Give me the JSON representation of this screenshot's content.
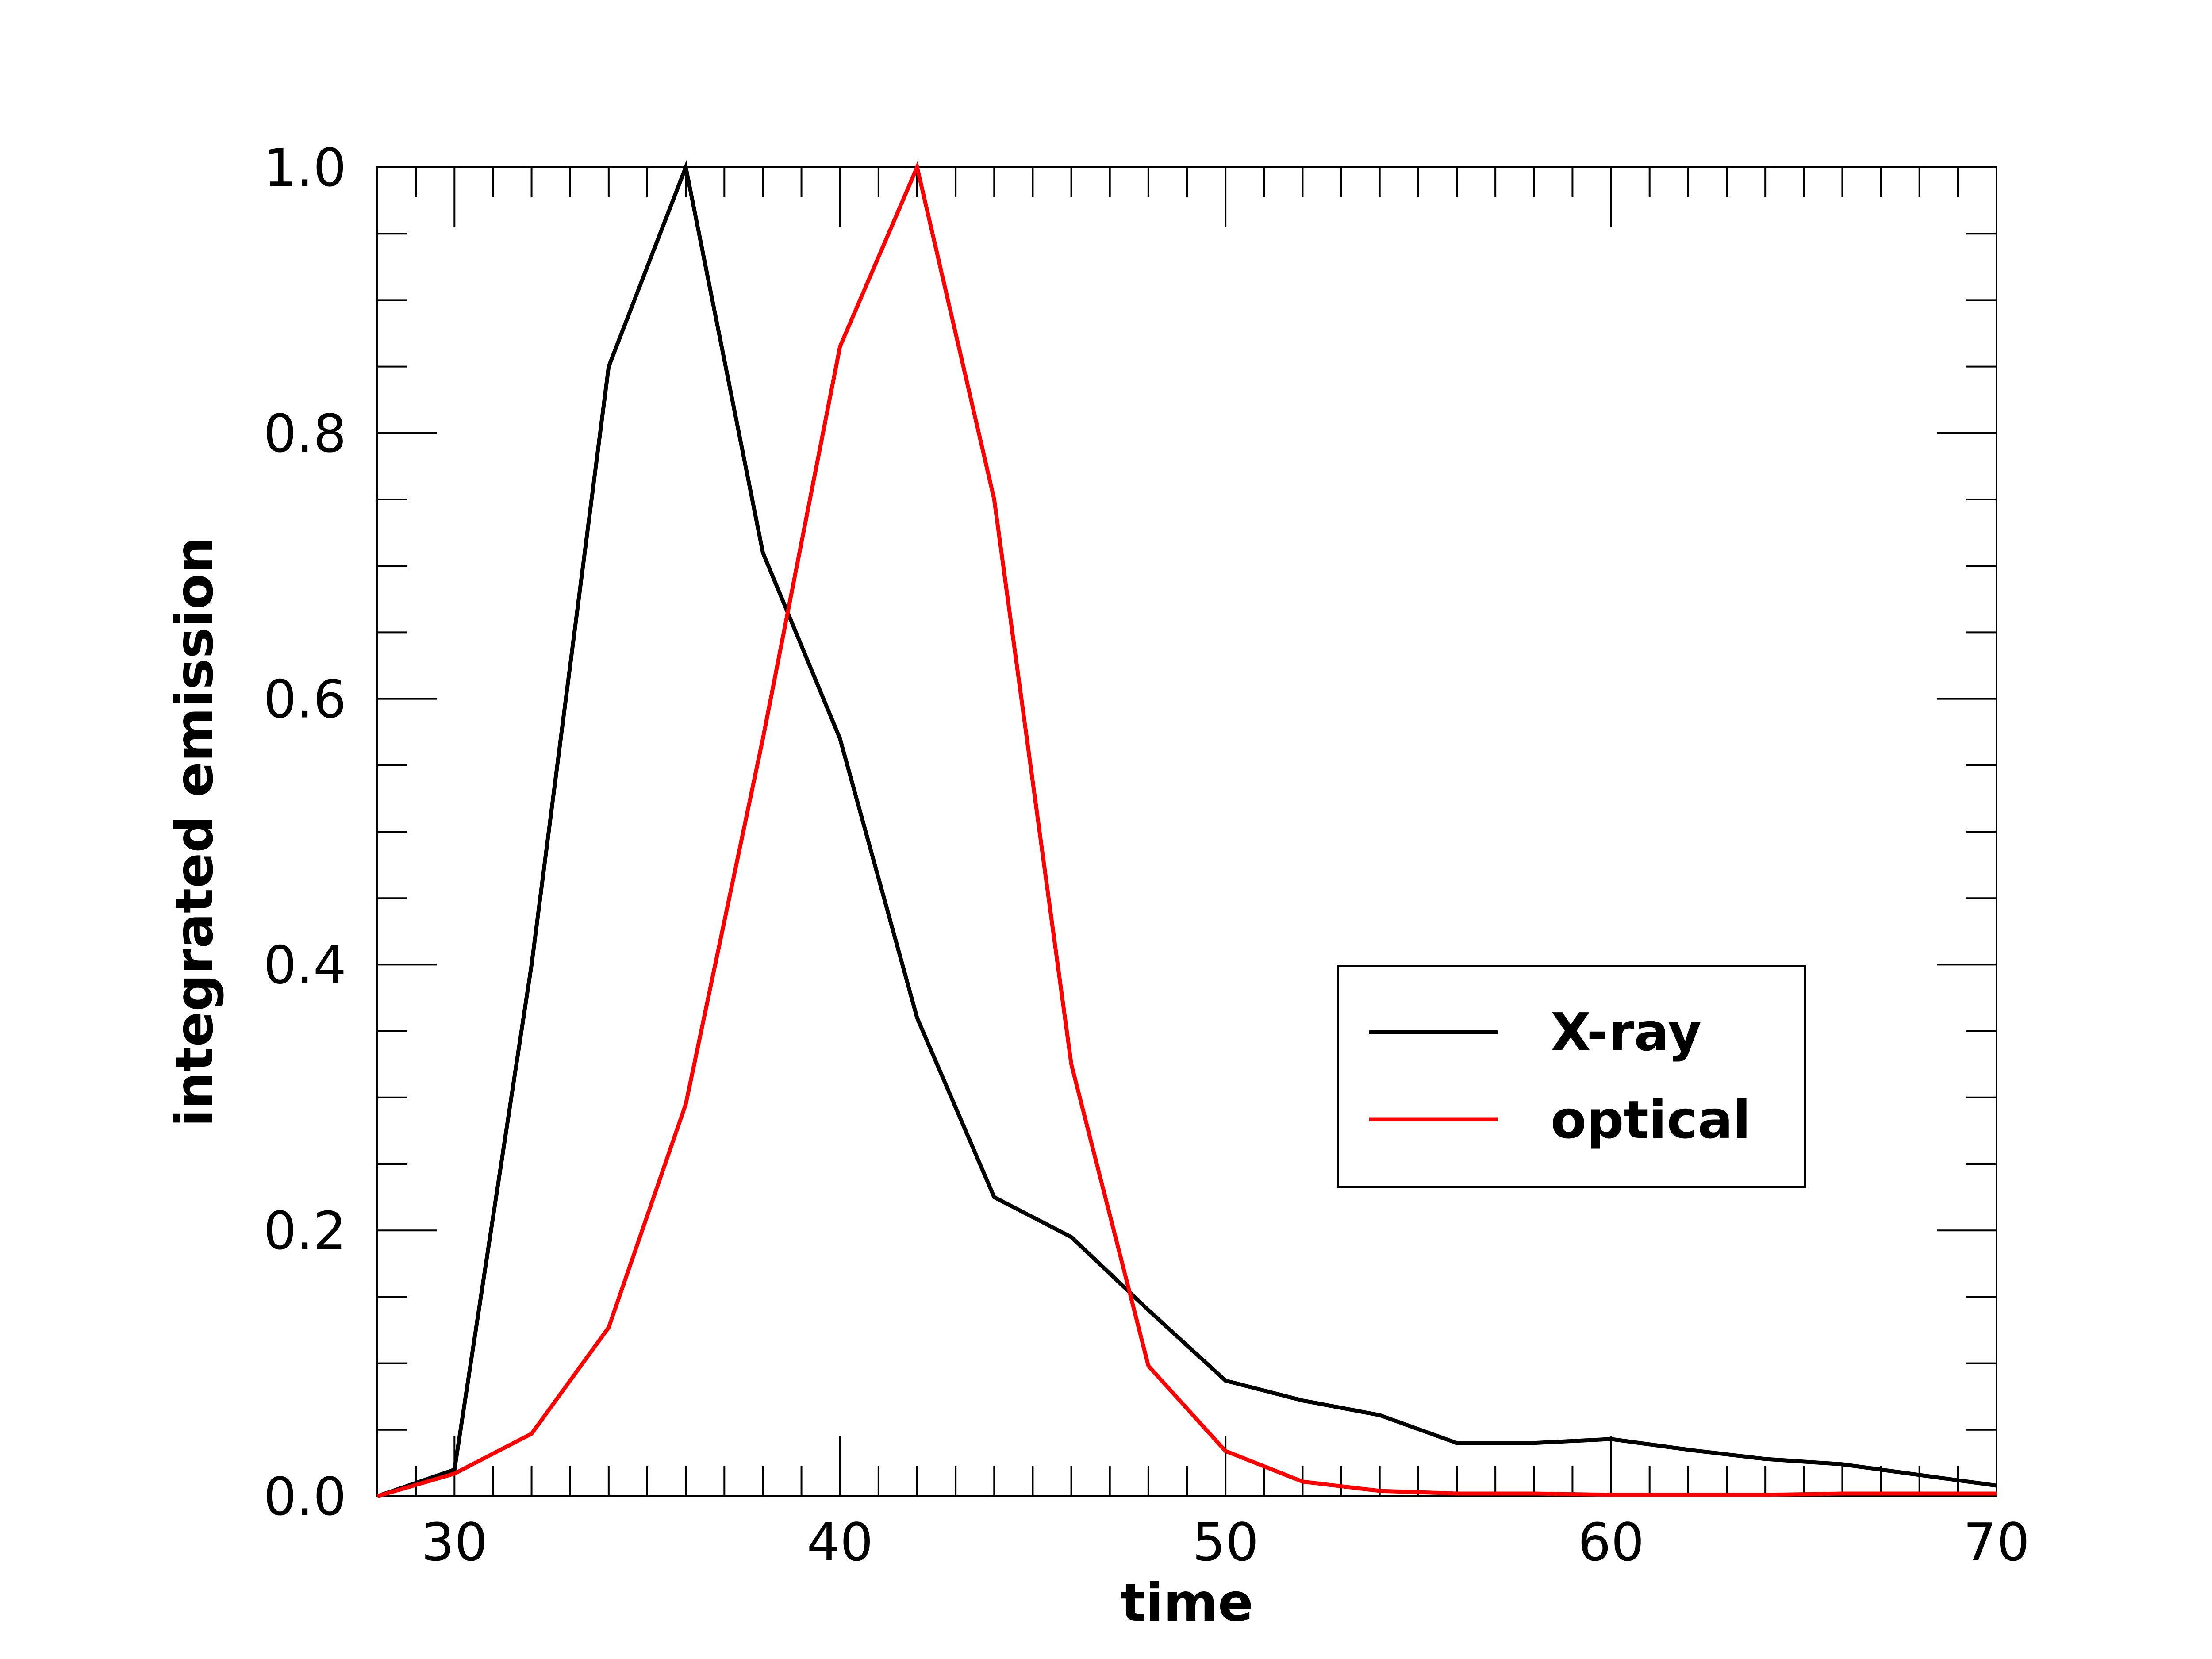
{
  "chart_data": {
    "type": "line",
    "title": "",
    "xlabel": "time",
    "ylabel": "integrated emission",
    "xlim": [
      28,
      70
    ],
    "ylim": [
      0.0,
      1.0
    ],
    "xticks": [
      30,
      40,
      50,
      60,
      70
    ],
    "xtick_labels": [
      "30",
      "40",
      "50",
      "60",
      "70"
    ],
    "yticks": [
      0.0,
      0.2,
      0.4,
      0.6,
      0.8,
      1.0
    ],
    "ytick_labels": [
      "0.0",
      "0.2",
      "0.4",
      "0.6",
      "0.8",
      "1.0"
    ],
    "x_minor_step": 1,
    "y_minor_step": 0.05,
    "grid": false,
    "legend_position": "center-right",
    "series": [
      {
        "name": "X-ray",
        "color": "#000000",
        "x": [
          28,
          30,
          32,
          34,
          36,
          38,
          40,
          42,
          44,
          46,
          48,
          50,
          52,
          54,
          56,
          58,
          60,
          62,
          64,
          66,
          68,
          70
        ],
        "y": [
          0.0,
          0.02,
          0.4,
          0.85,
          1.0,
          0.71,
          0.57,
          0.36,
          0.225,
          0.195,
          0.14,
          0.087,
          0.072,
          0.061,
          0.04,
          0.04,
          0.043,
          0.035,
          0.028,
          0.024,
          0.016,
          0.008
        ]
      },
      {
        "name": "optical",
        "color": "#ff0000",
        "x": [
          28,
          30,
          32,
          34,
          36,
          38,
          40,
          42,
          44,
          46,
          48,
          50,
          52,
          54,
          56,
          58,
          60,
          62,
          64,
          66,
          68,
          70
        ],
        "y": [
          0.0,
          0.017,
          0.047,
          0.127,
          0.295,
          0.57,
          0.865,
          1.0,
          0.75,
          0.325,
          0.098,
          0.034,
          0.011,
          0.004,
          0.002,
          0.002,
          0.001,
          0.001,
          0.001,
          0.002,
          0.002,
          0.002
        ]
      }
    ]
  }
}
